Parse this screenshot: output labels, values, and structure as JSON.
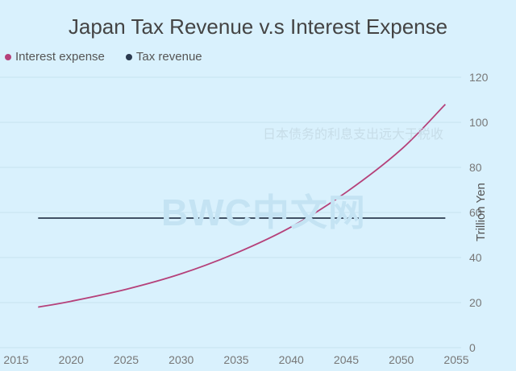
{
  "chart_data": {
    "type": "line",
    "title": "Japan Tax Revenue v.s Interest Expense",
    "ylabel": "Trillion Yen",
    "xlim": [
      2015,
      2055
    ],
    "ylim": [
      0,
      120
    ],
    "x_ticks": [
      2015,
      2020,
      2025,
      2030,
      2035,
      2040,
      2045,
      2050,
      2055
    ],
    "y_ticks": [
      0,
      20,
      40,
      60,
      80,
      100,
      120
    ],
    "grid": "horizontal",
    "legend_position": "top-left",
    "series": [
      {
        "name": "Interest expense",
        "color": "#b5417a",
        "x": [
          2017,
          2020,
          2025,
          2030,
          2035,
          2040,
          2045,
          2050,
          2054
        ],
        "y": [
          18,
          20.6,
          25.9,
          32.8,
          42,
          53.6,
          69,
          88,
          108
        ]
      },
      {
        "name": "Tax revenue",
        "color": "#2b3a4f",
        "x": [
          2017,
          2054
        ],
        "y": [
          57.5,
          57.5
        ]
      }
    ]
  },
  "watermarks": {
    "chinese": "日本债务的利息支出远大于税收",
    "brand": "BWC中文网"
  }
}
